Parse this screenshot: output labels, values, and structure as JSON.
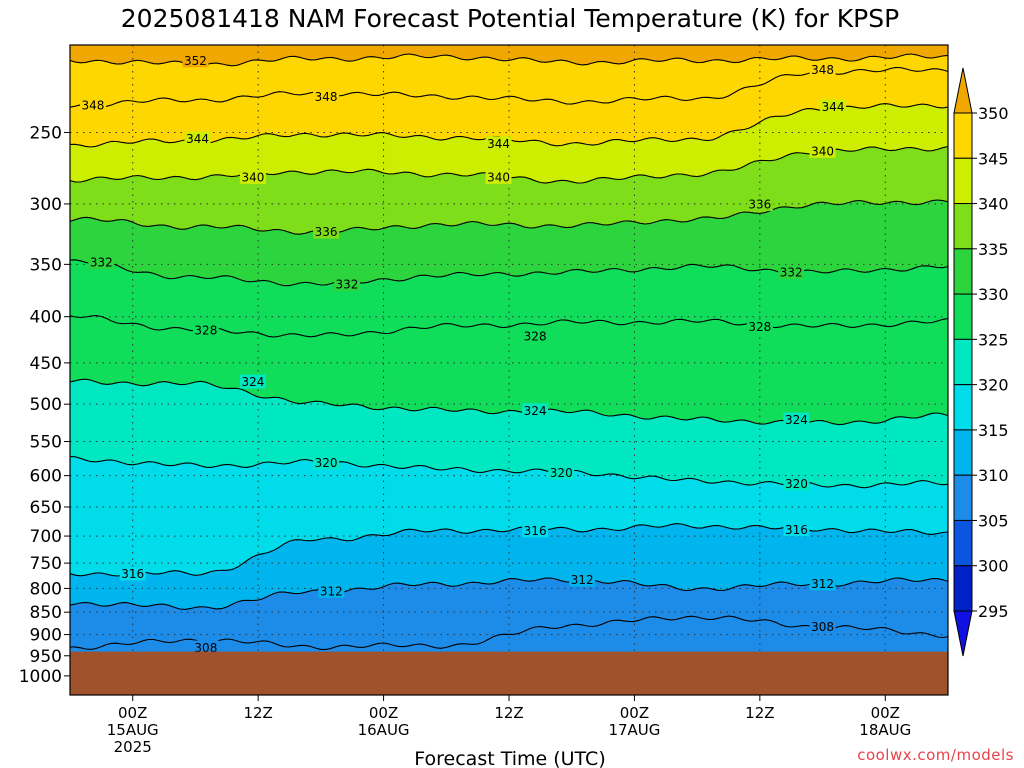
{
  "page": {
    "title": "2025081418 NAM Forecast Potential Temperature (K) for KPSP",
    "credit": "coolwx.com/models"
  },
  "chart_data": {
    "type": "heatmap",
    "title": "2025081418 NAM Forecast Potential Temperature (K) for KPSP",
    "xlabel": "Forecast Time (UTC)",
    "ylabel": "",
    "x_unit": "forecast hours from 2025-08-14 18Z",
    "xlim": [
      0,
      84
    ],
    "x_ticks": [
      {
        "hour": 6,
        "line1": "00Z",
        "line2": "15AUG",
        "line3": "2025"
      },
      {
        "hour": 18,
        "line1": "12Z",
        "line2": "",
        "line3": ""
      },
      {
        "hour": 30,
        "line1": "00Z",
        "line2": "16AUG",
        "line3": ""
      },
      {
        "hour": 42,
        "line1": "12Z",
        "line2": "",
        "line3": ""
      },
      {
        "hour": 54,
        "line1": "00Z",
        "line2": "17AUG",
        "line3": ""
      },
      {
        "hour": 66,
        "line1": "12Z",
        "line2": "",
        "line3": ""
      },
      {
        "hour": 78,
        "line1": "00Z",
        "line2": "18AUG",
        "line3": ""
      }
    ],
    "y_unit": "hPa",
    "y_scale": "log (pressure, inverted)",
    "ylim": [
      1050,
      200
    ],
    "y_ticks": [
      250,
      300,
      350,
      400,
      450,
      500,
      550,
      600,
      650,
      700,
      750,
      800,
      850,
      900,
      950,
      1000
    ],
    "grid": "dotted",
    "surface_pressure_hpa": 940,
    "colorbar": {
      "ticks": [
        350,
        345,
        340,
        335,
        330,
        325,
        320,
        315,
        310,
        305,
        300,
        295
      ],
      "bins": [
        {
          "from": 345,
          "to": 350,
          "color": "#ffd700"
        },
        {
          "from": 340,
          "to": 345,
          "color": "#cdee00"
        },
        {
          "from": 335,
          "to": 340,
          "color": "#7fde1a"
        },
        {
          "from": 330,
          "to": 335,
          "color": "#2cd43e"
        },
        {
          "from": 325,
          "to": 330,
          "color": "#10de5a"
        },
        {
          "from": 320,
          "to": 325,
          "color": "#00e8c2"
        },
        {
          "from": 315,
          "to": 320,
          "color": "#00dcea"
        },
        {
          "from": 310,
          "to": 315,
          "color": "#00b4ee"
        },
        {
          "from": 305,
          "to": 310,
          "color": "#1d8ce8"
        },
        {
          "from": 300,
          "to": 305,
          "color": "#0b55e0"
        },
        {
          "from": 295,
          "to": 300,
          "color": "#0020c8"
        }
      ],
      "over_color": "#f0a800",
      "under_color": "#1010e0"
    },
    "ground_color": "#a0522d",
    "isentropes": [
      {
        "theta": 352,
        "pressure_hpa": [
          208,
          210,
          207,
          206,
          209,
          208,
          207,
          206
        ]
      },
      {
        "theta": 348,
        "pressure_hpa": [
          233,
          230,
          226,
          228,
          231,
          229,
          214,
          213
        ]
      },
      {
        "theta": 344,
        "pressure_hpa": [
          258,
          255,
          251,
          253,
          257,
          254,
          235,
          233
        ]
      },
      {
        "theta": 340,
        "pressure_hpa": [
          282,
          280,
          276,
          278,
          283,
          278,
          262,
          260
        ]
      },
      {
        "theta": 336,
        "pressure_hpa": [
          312,
          318,
          322,
          316,
          317,
          312,
          300,
          298
        ]
      },
      {
        "theta": 332,
        "pressure_hpa": [
          348,
          362,
          368,
          360,
          357,
          352,
          357,
          352
        ]
      },
      {
        "theta": 328,
        "pressure_hpa": [
          400,
          414,
          420,
          410,
          406,
          405,
          410,
          405
        ]
      },
      {
        "theta": 324,
        "pressure_hpa": [
          472,
          475,
          500,
          508,
          510,
          520,
          525,
          515
        ]
      },
      {
        "theta": 320,
        "pressure_hpa": [
          575,
          585,
          580,
          590,
          595,
          608,
          615,
          612
        ]
      },
      {
        "theta": 316,
        "pressure_hpa": [
          770,
          770,
          705,
          690,
          688,
          682,
          688,
          695
        ]
      },
      {
        "theta": 312,
        "pressure_hpa": [
          830,
          840,
          805,
          790,
          782,
          800,
          790,
          782
        ]
      },
      {
        "theta": 308,
        "pressure_hpa": [
          930,
          912,
          928,
          925,
          878,
          860,
          882,
          900
        ]
      }
    ],
    "contour_labels": [
      {
        "text": "352",
        "hour": 12.0,
        "p": 208
      },
      {
        "text": "348",
        "hour": 2.2,
        "p": 233
      },
      {
        "text": "348",
        "hour": 24.5,
        "p": 228
      },
      {
        "text": "348",
        "hour": 72.0,
        "p": 213
      },
      {
        "text": "344",
        "hour": 12.2,
        "p": 254
      },
      {
        "text": "344",
        "hour": 41.0,
        "p": 257
      },
      {
        "text": "344",
        "hour": 73.0,
        "p": 234
      },
      {
        "text": "340",
        "hour": 17.5,
        "p": 280
      },
      {
        "text": "340",
        "hour": 41.0,
        "p": 280
      },
      {
        "text": "340",
        "hour": 72.0,
        "p": 262
      },
      {
        "text": "336",
        "hour": 24.5,
        "p": 322
      },
      {
        "text": "336",
        "hour": 66.0,
        "p": 300
      },
      {
        "text": "332",
        "hour": 3.0,
        "p": 348
      },
      {
        "text": "332",
        "hour": 26.5,
        "p": 368
      },
      {
        "text": "332",
        "hour": 69.0,
        "p": 357
      },
      {
        "text": "328",
        "hour": 13.0,
        "p": 414
      },
      {
        "text": "328",
        "hour": 44.5,
        "p": 420
      },
      {
        "text": "328",
        "hour": 66.0,
        "p": 410
      },
      {
        "text": "324",
        "hour": 17.5,
        "p": 472
      },
      {
        "text": "324",
        "hour": 44.5,
        "p": 508
      },
      {
        "text": "324",
        "hour": 69.5,
        "p": 520
      },
      {
        "text": "320",
        "hour": 24.5,
        "p": 580
      },
      {
        "text": "320",
        "hour": 47.0,
        "p": 595
      },
      {
        "text": "320",
        "hour": 69.5,
        "p": 612
      },
      {
        "text": "316",
        "hour": 6.0,
        "p": 770
      },
      {
        "text": "316",
        "hour": 44.5,
        "p": 690
      },
      {
        "text": "316",
        "hour": 69.5,
        "p": 688
      },
      {
        "text": "312",
        "hour": 25.0,
        "p": 805
      },
      {
        "text": "312",
        "hour": 49.0,
        "p": 782
      },
      {
        "text": "312",
        "hour": 72.0,
        "p": 790
      },
      {
        "text": "308",
        "hour": 13.0,
        "p": 930
      },
      {
        "text": "308",
        "hour": 72.0,
        "p": 882
      }
    ]
  }
}
